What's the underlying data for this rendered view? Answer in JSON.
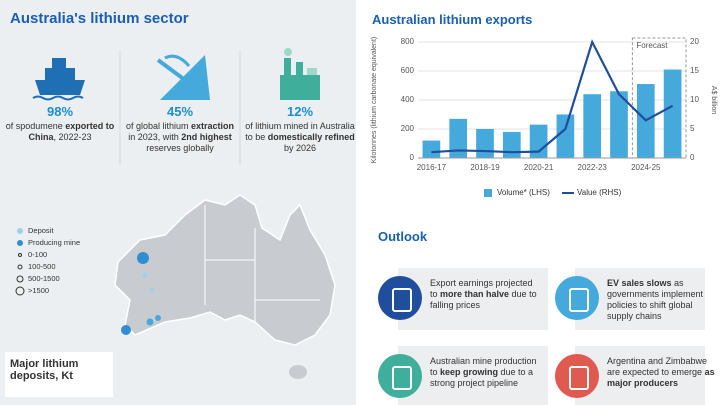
{
  "left": {
    "title": "Australia's lithium sector",
    "stats": [
      {
        "value": "98%",
        "parts": [
          "of spodumene ",
          "exported to China",
          ", 2022-23"
        ]
      },
      {
        "value": "45%",
        "parts": [
          "of global lithium ",
          "extraction",
          " in 2023, with ",
          "2nd highest",
          " reserves globally"
        ]
      },
      {
        "value": "12%",
        "parts": [
          "of lithium mined in Australia to be ",
          "domestically refined",
          " by 2026"
        ]
      }
    ],
    "legend": [
      "Deposit",
      "Producing mine",
      "0-100",
      "100-500",
      "500-1500",
      ">1500"
    ],
    "map_label": "Major lithium deposits, Kt"
  },
  "chart_data": {
    "type": "bar",
    "title": "Australian lithium exports",
    "categories": [
      "2016-17",
      null,
      "2018-19",
      null,
      "2020-21",
      null,
      "2022-23",
      null,
      "2024-25",
      null
    ],
    "series": [
      {
        "name": "Volume* (LHS)",
        "type": "bar",
        "color": "#45a9dc",
        "values": [
          120,
          270,
          200,
          180,
          230,
          300,
          440,
          460,
          510,
          610
        ]
      },
      {
        "name": "Value (RHS)",
        "type": "line",
        "axis": "y2",
        "color": "#1f4e9c",
        "values": [
          1,
          1.3,
          1.2,
          1,
          1.1,
          5,
          20,
          11,
          6.5,
          9
        ]
      }
    ],
    "ylim": [
      0,
      800
    ],
    "yticks": [
      0,
      200,
      400,
      600,
      800
    ],
    "y2lim": [
      0,
      20
    ],
    "y2ticks": [
      0,
      5,
      10,
      15,
      20
    ],
    "ylabel": "Kilotonnes (lithium carbonate equivalent)",
    "y2label": "A$ billion",
    "annotation": "Forecast"
  },
  "outlook": {
    "title": "Outlook",
    "items": [
      {
        "color": "#1f4e9c",
        "parts": [
          "Export earnings projected to ",
          "more than halve",
          " due to falling prices"
        ]
      },
      {
        "color": "#45a9dc",
        "parts": [
          "",
          "EV sales slows",
          " as governments implement policies to shift global supply chains"
        ]
      },
      {
        "color": "#3fae9a",
        "parts": [
          "Australian mine production to ",
          "keep growing",
          " due to a strong project pipeline"
        ]
      },
      {
        "color": "#e05a4f",
        "parts": [
          "Argentina and Zimbabwe are expected to emerge ",
          "as major producers",
          ""
        ]
      }
    ]
  }
}
